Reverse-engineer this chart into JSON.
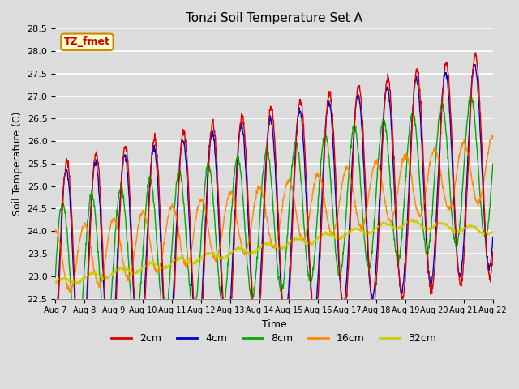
{
  "title": "Tonzi Soil Temperature Set A",
  "xlabel": "Time",
  "ylabel": "Soil Temperature (C)",
  "ylim": [
    22.5,
    28.5
  ],
  "bg_color": "#dcdcdc",
  "grid_color": "white",
  "legend_label": "TZ_fmet",
  "legend_bg": "#ffffcc",
  "legend_border": "#cc8800",
  "series": {
    "2cm": {
      "color": "#dd0000"
    },
    "4cm": {
      "color": "#0000cc"
    },
    "8cm": {
      "color": "#00aa00"
    },
    "16cm": {
      "color": "#ff8800"
    },
    "32cm": {
      "color": "#cccc00"
    }
  },
  "date_labels": [
    "Aug 7",
    "Aug 8",
    "Aug 9",
    "Aug 10",
    "Aug 11",
    "Aug 12",
    "Aug 13",
    "Aug 14",
    "Aug 15",
    "Aug 16",
    "Aug 17",
    "Aug 18",
    "Aug 19",
    "Aug 20",
    "Aug 21",
    "Aug 22"
  ],
  "yticks": [
    22.5,
    23.0,
    23.5,
    24.0,
    24.5,
    25.0,
    25.5,
    26.0,
    26.5,
    27.0,
    27.5,
    28.0,
    28.5
  ]
}
